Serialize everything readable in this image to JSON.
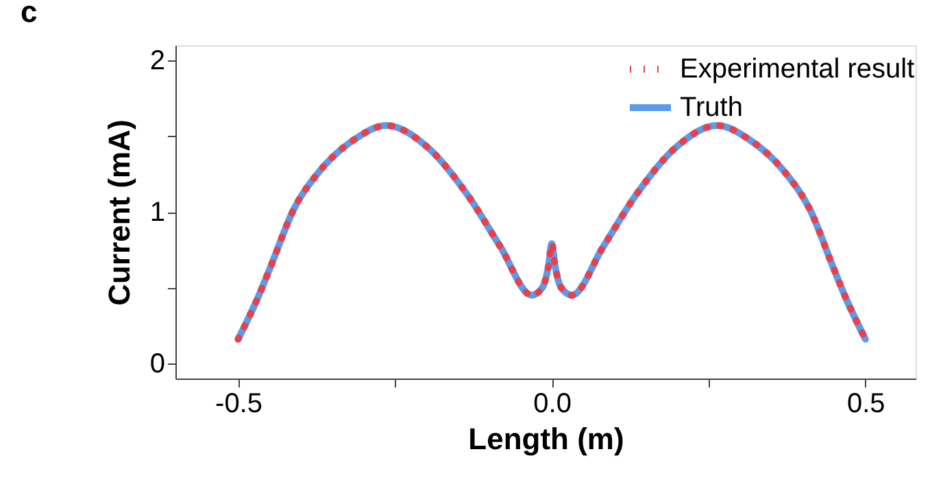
{
  "chart_data": {
    "type": "line",
    "title": "c",
    "xlabel": "Length (m)",
    "ylabel": "Current (mA)",
    "xlim": [
      -0.6,
      0.58
    ],
    "ylim": [
      -0.1,
      2.1
    ],
    "xticks": [
      -0.5,
      {
        "value": -0.25,
        "label": null
      },
      {
        "value": 0,
        "label": "0.0"
      },
      {
        "value": 0.25,
        "label": null
      },
      0.5
    ],
    "yticks": [
      0,
      {
        "value": 0.5,
        "label": null
      },
      1,
      {
        "value": 1.5,
        "label": null
      },
      2
    ],
    "grid": false,
    "legend": "top right",
    "marker": "none",
    "x": [
      -0.5,
      -0.47,
      -0.45,
      -0.411,
      -0.372,
      -0.314,
      -0.264,
      -0.199,
      -0.134,
      -0.082,
      -0.032,
      -0.015,
      -0.005,
      0.0,
      0.005,
      0.015,
      0.032,
      0.082,
      0.134,
      0.199,
      0.264,
      0.314,
      0.372,
      0.411,
      0.45,
      0.47,
      0.5
    ],
    "series": [
      {
        "name": "Experimental result",
        "color": "#e8414a",
        "line_style": "dotted",
        "values": [
          0.16,
          0.42,
          0.62,
          1.02,
          1.26,
          1.48,
          1.57,
          1.43,
          1.11,
          0.77,
          0.45,
          0.5,
          0.65,
          0.79,
          0.65,
          0.5,
          0.45,
          0.77,
          1.11,
          1.43,
          1.57,
          1.48,
          1.26,
          1.02,
          0.62,
          0.42,
          0.16
        ]
      },
      {
        "name": "Truth",
        "color": "#5b9bea",
        "line_style": "solid",
        "values": [
          0.16,
          0.42,
          0.62,
          1.02,
          1.26,
          1.48,
          1.57,
          1.43,
          1.11,
          0.77,
          0.45,
          0.5,
          0.65,
          0.79,
          0.65,
          0.5,
          0.45,
          0.77,
          1.11,
          1.43,
          1.57,
          1.48,
          1.26,
          1.02,
          0.62,
          0.42,
          0.16
        ]
      }
    ]
  }
}
